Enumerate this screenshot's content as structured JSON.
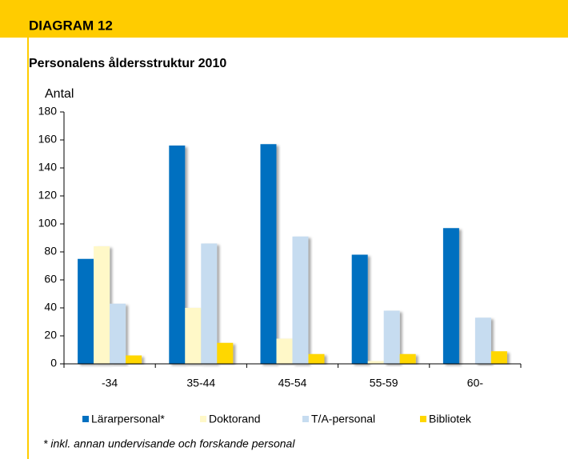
{
  "header": "DIAGRAM 12",
  "chart_data": {
    "type": "bar",
    "title": "Personalens åldersstruktur 2010",
    "y_label": "Antal",
    "categories": [
      "-34",
      "35-44",
      "45-54",
      "55-59",
      "60-"
    ],
    "series": [
      {
        "name": "Lärarpersonal*",
        "color": "#0070c0",
        "values": [
          75,
          156,
          157,
          78,
          97
        ]
      },
      {
        "name": "Doktorand",
        "color": "#fff8c8",
        "values": [
          84,
          40,
          18,
          2,
          0
        ]
      },
      {
        "name": "T/A-personal",
        "color": "#c6dcf0",
        "values": [
          43,
          86,
          91,
          38,
          33
        ]
      },
      {
        "name": "Bibliotek",
        "color": "#ffd700",
        "values": [
          6,
          15,
          7,
          7,
          9
        ]
      }
    ],
    "ylim": [
      0,
      180
    ],
    "yticks": [
      0,
      20,
      40,
      60,
      80,
      100,
      120,
      140,
      160,
      180
    ],
    "footnote": "* inkl. annan undervisande och forskande personal"
  }
}
